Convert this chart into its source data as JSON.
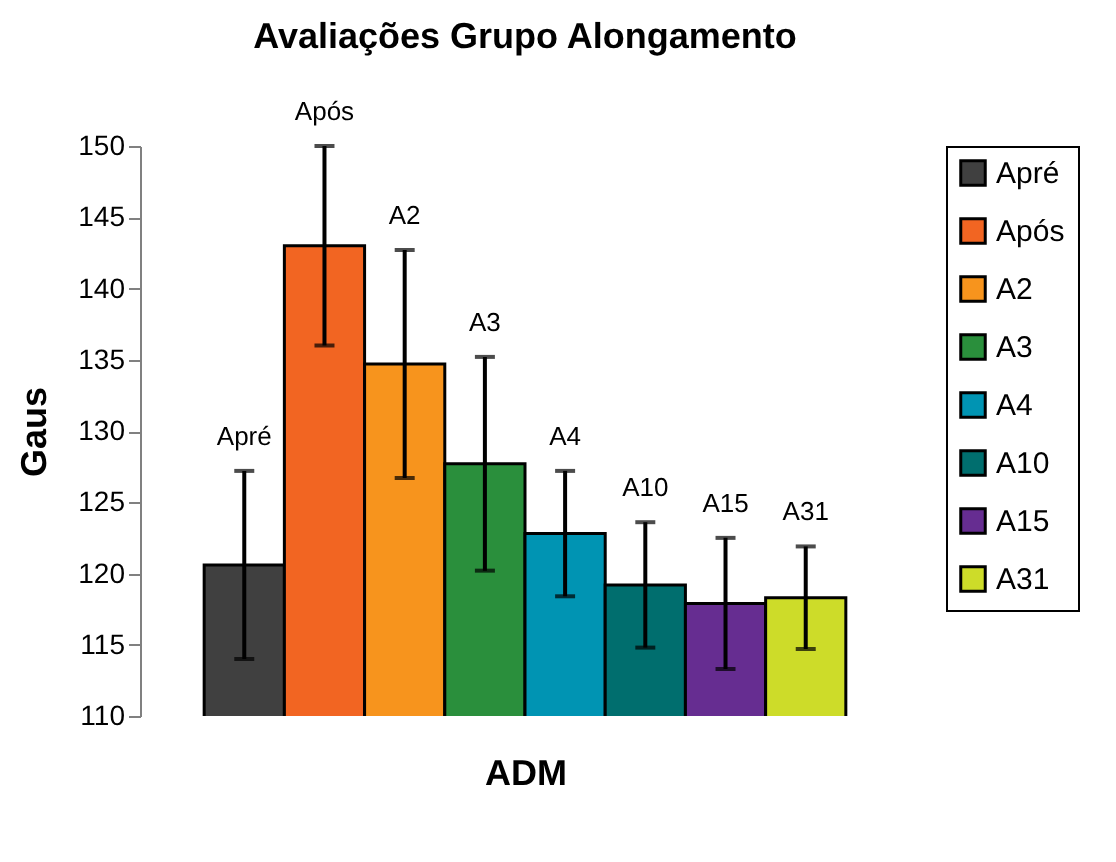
{
  "chart_data": {
    "type": "bar",
    "title": "Avaliações Grupo Alongamento",
    "xlabel": "ADM",
    "ylabel": "Gaus",
    "categories": [
      null
    ],
    "series": [
      {
        "name": "Apré",
        "color": "#404040",
        "values": [
          120.6
        ],
        "errors": [
          6.6
        ]
      },
      {
        "name": "Após",
        "color": "#f26522",
        "values": [
          143.0
        ],
        "errors": [
          7.0
        ]
      },
      {
        "name": "A2",
        "color": "#f7941d",
        "values": [
          134.7
        ],
        "errors": [
          8.0
        ]
      },
      {
        "name": "A3",
        "color": "#2a8f3c",
        "values": [
          127.7
        ],
        "errors": [
          7.5
        ]
      },
      {
        "name": "A4",
        "color": "#0094b3",
        "values": [
          122.8
        ],
        "errors": [
          4.4
        ]
      },
      {
        "name": "A10",
        "color": "#006e6e",
        "values": [
          119.2
        ],
        "errors": [
          4.4
        ]
      },
      {
        "name": "A15",
        "color": "#662d91",
        "values": [
          117.9
        ],
        "errors": [
          4.6
        ]
      },
      {
        "name": "A31",
        "color": "#cddc29",
        "values": [
          118.3
        ],
        "errors": [
          3.6
        ]
      }
    ],
    "ylim": [
      110,
      150
    ],
    "yticks": [
      110,
      115,
      120,
      125,
      130,
      135,
      140,
      145,
      150
    ],
    "grid": false,
    "legend": "right",
    "tick_labels": "y"
  }
}
